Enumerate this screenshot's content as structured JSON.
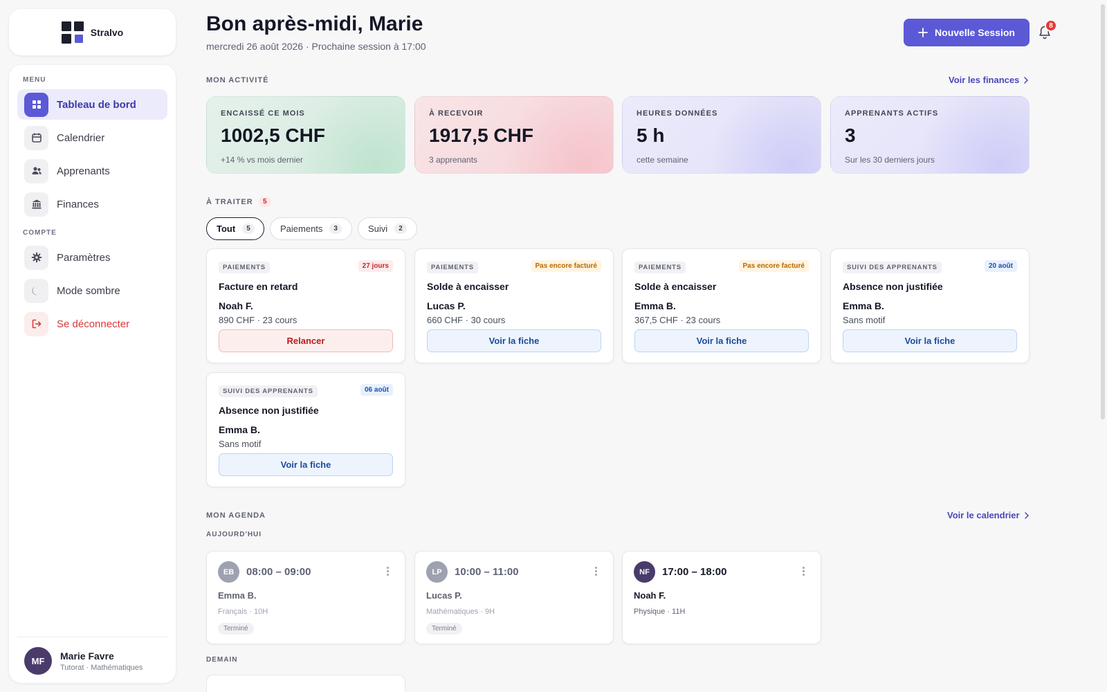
{
  "app": {
    "name": "Stralvo"
  },
  "sidebar": {
    "section_menu": "MENU",
    "section_account": "COMPTE",
    "menu": [
      {
        "label": "Tableau de bord",
        "icon": "dashboard-icon",
        "active": true
      },
      {
        "label": "Calendrier",
        "icon": "calendar-icon"
      },
      {
        "label": "Apprenants",
        "icon": "users-icon"
      },
      {
        "label": "Finances",
        "icon": "bank-icon"
      }
    ],
    "account": [
      {
        "label": "Paramètres",
        "icon": "gear-icon"
      },
      {
        "label": "Mode sombre",
        "icon": "moon-icon"
      },
      {
        "label": "Se déconnecter",
        "icon": "logout-icon"
      }
    ],
    "user": {
      "initials": "MF",
      "name": "Marie Favre",
      "role": "Tutorat · Mathématiques"
    }
  },
  "header": {
    "greeting": "Bon après-midi, Marie",
    "subline": "mercredi 26 août 2026 · Prochaine session à 17:00",
    "new_session_label": "Nouvelle Session",
    "notifications_count": "8"
  },
  "activity": {
    "title": "MON ACTIVITÉ",
    "link": "Voir les finances",
    "stats": [
      {
        "label": "ENCAISSÉ CE MOIS",
        "value": "1002,5 CHF",
        "sub": "+14 % vs mois dernier",
        "tone": "green"
      },
      {
        "label": "À RECEVOIR",
        "value": "1917,5 CHF",
        "sub": "3 apprenants",
        "tone": "red"
      },
      {
        "label": "HEURES DONNÉES",
        "value": "5 h",
        "sub": "cette semaine",
        "tone": "purple"
      },
      {
        "label": "APPRENANTS ACTIFS",
        "value": "3",
        "sub": "Sur les 30 derniers jours",
        "tone": "purple"
      }
    ]
  },
  "todo": {
    "title": "À TRAITER",
    "count": "5",
    "filters": [
      {
        "label": "Tout",
        "count": "5",
        "active": true
      },
      {
        "label": "Paiements",
        "count": "3"
      },
      {
        "label": "Suivi",
        "count": "2"
      }
    ],
    "cards": [
      {
        "category": "PAIEMENTS",
        "tag": "27 jours",
        "title": "Facture en retard",
        "who": "Noah F.",
        "detail": "890 CHF · 23 cours",
        "action": "Relancer"
      },
      {
        "category": "PAIEMENTS",
        "tag": "Pas encore facturé",
        "title": "Solde à encaisser",
        "who": "Lucas P.",
        "detail": "660 CHF · 30 cours",
        "action": "Voir la fiche"
      },
      {
        "category": "PAIEMENTS",
        "tag": "Pas encore facturé",
        "title": "Solde à encaisser",
        "who": "Emma B.",
        "detail": "367,5 CHF · 23 cours",
        "action": "Voir la fiche"
      },
      {
        "category": "SUIVI DES APPRENANTS",
        "tag": "20 août",
        "title": "Absence non justifiée",
        "who": "Emma B.",
        "detail": "Sans motif",
        "action": "Voir la fiche"
      },
      {
        "category": "SUIVI DES APPRENANTS",
        "tag": "06 août",
        "title": "Absence non justifiée",
        "who": "Emma B.",
        "detail": "Sans motif",
        "action": "Voir la fiche"
      }
    ]
  },
  "agenda": {
    "title": "MON AGENDA",
    "link": "Voir le calendrier",
    "today_label": "AUJOURD'HUI",
    "tomorrow_label": "DEMAIN",
    "today": [
      {
        "initials": "EB",
        "time": "08:00 – 09:00",
        "name": "Emma B.",
        "subject": "Français · 10H",
        "status": "Terminé"
      },
      {
        "initials": "LP",
        "time": "10:00 – 11:00",
        "name": "Lucas P.",
        "subject": "Mathématiques · 9H",
        "status": "Terminé"
      },
      {
        "initials": "NF",
        "time": "17:00 – 18:00",
        "name": "Noah F.",
        "subject": "Physique · 11H",
        "status": ""
      }
    ]
  },
  "colors": {
    "accent": "#5b59d6",
    "danger": "#d83a3a",
    "link": "#4a48b8"
  }
}
